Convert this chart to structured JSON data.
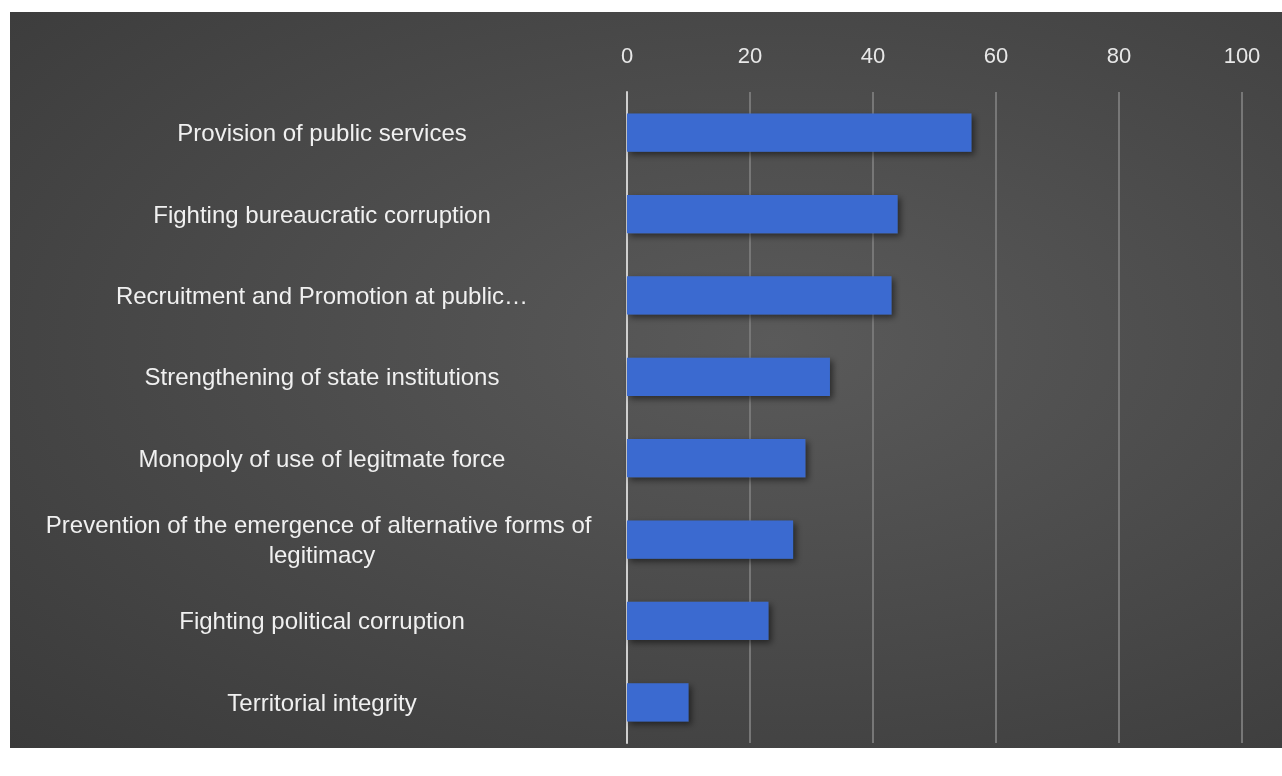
{
  "chart_data": {
    "type": "bar",
    "orientation": "horizontal",
    "categories": [
      "Provision of public services",
      "Fighting bureaucratic corruption",
      "Recruitment and Promotion at public…",
      "Strengthening of state institutions",
      "Monopoly of use of legitmate force",
      "Prevention of the emergence of alternative forms of legitimacy",
      "Fighting political corruption",
      "Territorial integrity"
    ],
    "values": [
      56,
      44,
      43,
      33,
      29,
      27,
      23,
      10
    ],
    "color": "#3a6bd0",
    "xlim": [
      0,
      100
    ],
    "xticks": [
      0,
      20,
      40,
      60,
      80,
      100
    ],
    "grid": "x"
  }
}
